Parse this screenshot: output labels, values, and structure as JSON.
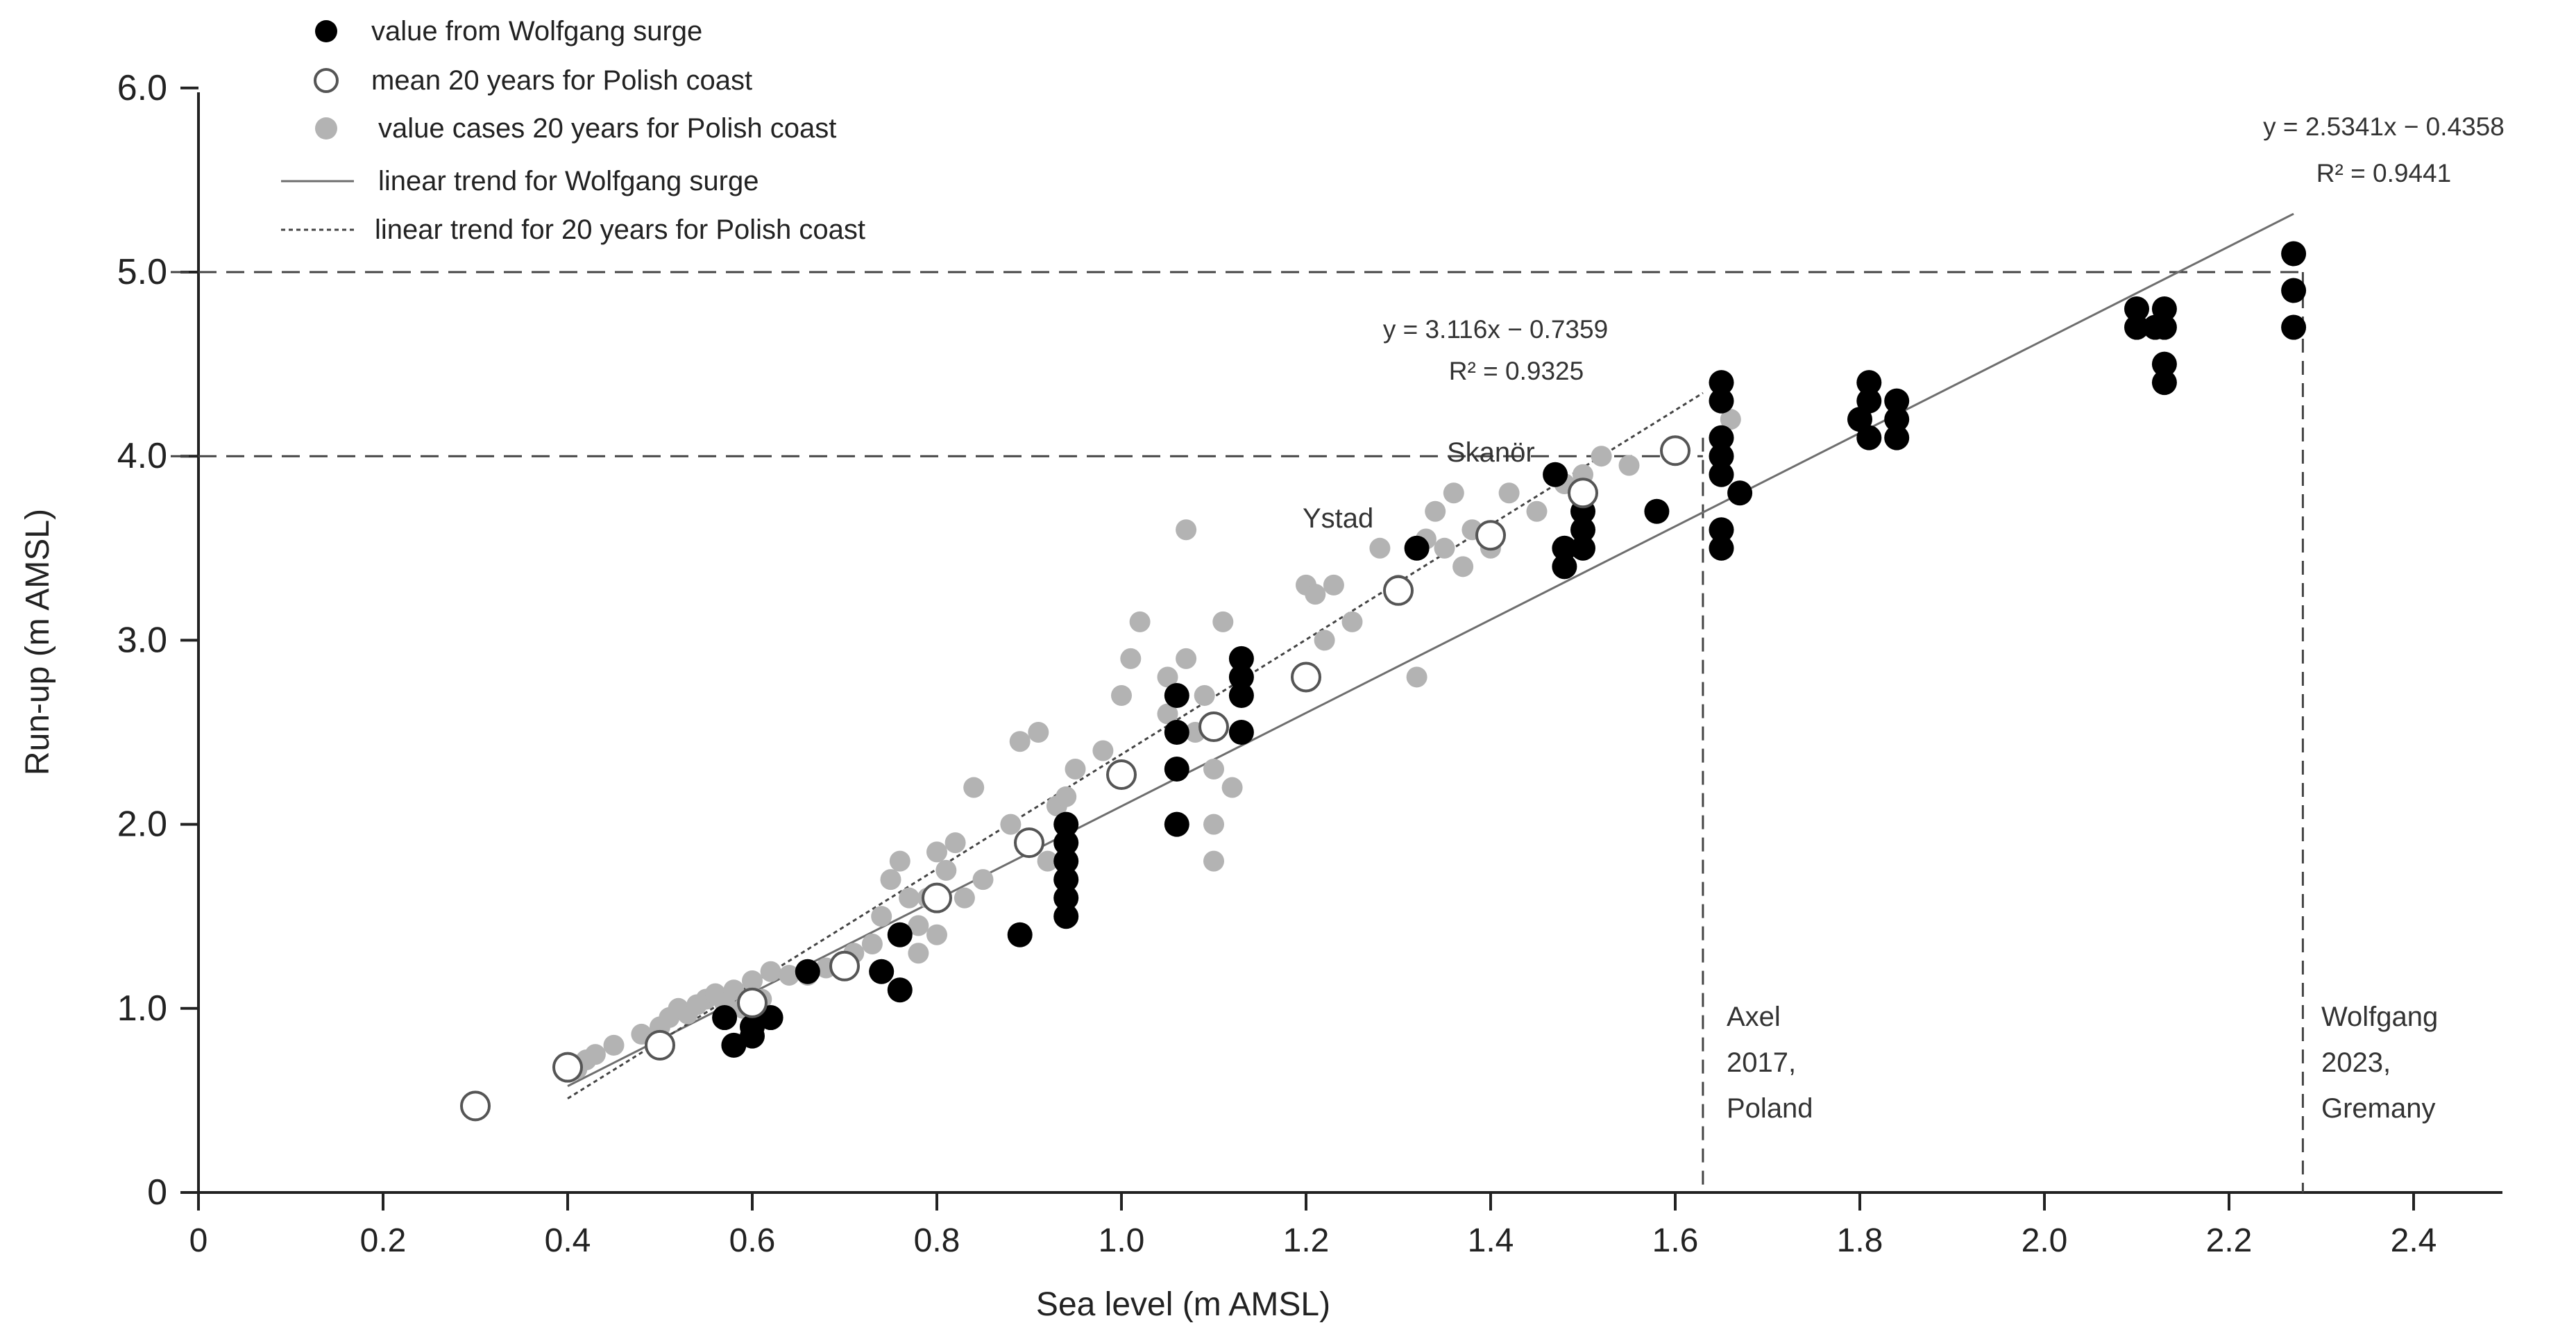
{
  "chart_data": {
    "type": "scatter",
    "xlabel": "Sea level (m AMSL)",
    "ylabel": "Run-up (m AMSL)",
    "xlim": [
      0,
      2.5
    ],
    "ylim": [
      0,
      6
    ],
    "x_ticks": [
      "0",
      "0.2",
      "0.4",
      "0.6",
      "0.8",
      "1.0",
      "1.2",
      "1.4",
      "1.6",
      "1.8",
      "2.0",
      "2.2",
      "2.4"
    ],
    "y_ticks": [
      "0",
      "1.0",
      "2.0",
      "3.0",
      "4.0",
      "5.0",
      "6.0"
    ],
    "legend": {
      "wolfgang": "value from Wolfgang surge",
      "mean20": "mean 20 years for Polish coast",
      "cases20": "value cases 20 years for Polish coast",
      "trend_wolfgang": "linear trend for Wolfgang surge",
      "trend_20": "linear trend for 20 years for Polish coast"
    },
    "colors": {
      "wolfgang": "#000000",
      "cases20": "#b3b3b3",
      "trend_wolfgang": "#6e6e6e",
      "trend_20": "#444444",
      "reference": "#444444"
    },
    "series": [
      {
        "name": "value cases 20 years for Polish coast",
        "style": "gray",
        "points": [
          [
            0.41,
            0.67
          ],
          [
            0.42,
            0.72
          ],
          [
            0.43,
            0.75
          ],
          [
            0.45,
            0.8
          ],
          [
            0.48,
            0.86
          ],
          [
            0.5,
            0.9
          ],
          [
            0.51,
            0.95
          ],
          [
            0.52,
            1.0
          ],
          [
            0.53,
            0.97
          ],
          [
            0.54,
            1.02
          ],
          [
            0.55,
            1.05
          ],
          [
            0.56,
            1.08
          ],
          [
            0.57,
            1.03
          ],
          [
            0.58,
            1.1
          ],
          [
            0.59,
            1.0
          ],
          [
            0.6,
            1.15
          ],
          [
            0.61,
            1.05
          ],
          [
            0.62,
            1.2
          ],
          [
            0.64,
            1.18
          ],
          [
            0.66,
            1.18
          ],
          [
            0.68,
            1.22
          ],
          [
            0.7,
            1.25
          ],
          [
            0.71,
            1.3
          ],
          [
            0.73,
            1.35
          ],
          [
            0.74,
            1.5
          ],
          [
            0.75,
            1.7
          ],
          [
            0.76,
            1.8
          ],
          [
            0.77,
            1.6
          ],
          [
            0.78,
            1.3
          ],
          [
            0.78,
            1.45
          ],
          [
            0.79,
            1.6
          ],
          [
            0.8,
            1.85
          ],
          [
            0.8,
            1.4
          ],
          [
            0.81,
            1.75
          ],
          [
            0.82,
            1.9
          ],
          [
            0.83,
            1.6
          ],
          [
            0.84,
            2.2
          ],
          [
            0.85,
            1.7
          ],
          [
            0.88,
            2.0
          ],
          [
            0.89,
            2.45
          ],
          [
            0.9,
            1.9
          ],
          [
            0.91,
            2.5
          ],
          [
            0.92,
            1.8
          ],
          [
            0.93,
            2.1
          ],
          [
            0.94,
            2.15
          ],
          [
            0.95,
            2.3
          ],
          [
            0.98,
            2.4
          ],
          [
            1.0,
            2.7
          ],
          [
            1.01,
            2.9
          ],
          [
            1.02,
            3.1
          ],
          [
            1.05,
            2.6
          ],
          [
            1.05,
            2.8
          ],
          [
            1.06,
            2.0
          ],
          [
            1.07,
            2.9
          ],
          [
            1.07,
            3.6
          ],
          [
            1.08,
            2.5
          ],
          [
            1.09,
            2.7
          ],
          [
            1.1,
            2.0
          ],
          [
            1.1,
            1.8
          ],
          [
            1.1,
            2.3
          ],
          [
            1.11,
            3.1
          ],
          [
            1.12,
            2.2
          ],
          [
            1.13,
            2.8
          ],
          [
            1.2,
            3.3
          ],
          [
            1.21,
            3.25
          ],
          [
            1.22,
            3.0
          ],
          [
            1.23,
            3.3
          ],
          [
            1.25,
            3.1
          ],
          [
            1.28,
            3.5
          ],
          [
            1.3,
            3.3
          ],
          [
            1.32,
            2.8
          ],
          [
            1.33,
            3.55
          ],
          [
            1.34,
            3.7
          ],
          [
            1.35,
            3.5
          ],
          [
            1.36,
            3.8
          ],
          [
            1.37,
            3.4
          ],
          [
            1.38,
            3.6
          ],
          [
            1.4,
            3.5
          ],
          [
            1.42,
            3.8
          ],
          [
            1.45,
            3.7
          ],
          [
            1.48,
            3.85
          ],
          [
            1.5,
            3.9
          ],
          [
            1.52,
            4.0
          ],
          [
            1.55,
            3.95
          ],
          [
            1.66,
            4.2
          ]
        ]
      },
      {
        "name": "value from Wolfgang surge",
        "style": "black",
        "points": [
          [
            0.57,
            0.95
          ],
          [
            0.58,
            0.8
          ],
          [
            0.6,
            0.85
          ],
          [
            0.6,
            0.9
          ],
          [
            0.62,
            0.95
          ],
          [
            0.66,
            1.2
          ],
          [
            0.74,
            1.2
          ],
          [
            0.76,
            1.1
          ],
          [
            0.76,
            1.4
          ],
          [
            0.89,
            1.4
          ],
          [
            0.94,
            1.5
          ],
          [
            0.94,
            1.6
          ],
          [
            0.94,
            1.7
          ],
          [
            0.94,
            1.8
          ],
          [
            0.94,
            1.9
          ],
          [
            0.94,
            2.0
          ],
          [
            1.06,
            2.0
          ],
          [
            1.06,
            2.3
          ],
          [
            1.06,
            2.5
          ],
          [
            1.06,
            2.7
          ],
          [
            1.13,
            2.5
          ],
          [
            1.13,
            2.7
          ],
          [
            1.13,
            2.8
          ],
          [
            1.13,
            2.9
          ],
          [
            1.32,
            3.5
          ],
          [
            1.47,
            3.9
          ],
          [
            1.48,
            3.4
          ],
          [
            1.48,
            3.5
          ],
          [
            1.5,
            3.5
          ],
          [
            1.5,
            3.6
          ],
          [
            1.5,
            3.7
          ],
          [
            1.58,
            3.7
          ],
          [
            1.65,
            3.5
          ],
          [
            1.65,
            3.6
          ],
          [
            1.65,
            3.9
          ],
          [
            1.65,
            4.0
          ],
          [
            1.65,
            4.1
          ],
          [
            1.65,
            4.3
          ],
          [
            1.65,
            4.4
          ],
          [
            1.67,
            3.8
          ],
          [
            1.8,
            4.2
          ],
          [
            1.81,
            4.1
          ],
          [
            1.81,
            4.3
          ],
          [
            1.81,
            4.4
          ],
          [
            1.84,
            4.1
          ],
          [
            1.84,
            4.2
          ],
          [
            1.84,
            4.3
          ],
          [
            2.1,
            4.7
          ],
          [
            2.1,
            4.8
          ],
          [
            2.12,
            4.7
          ],
          [
            2.13,
            4.4
          ],
          [
            2.13,
            4.5
          ],
          [
            2.13,
            4.7
          ],
          [
            2.13,
            4.8
          ],
          [
            2.27,
            4.7
          ],
          [
            2.27,
            4.9
          ],
          [
            2.27,
            5.1
          ]
        ]
      },
      {
        "name": "mean 20 years for Polish coast",
        "style": "open",
        "points": [
          [
            0.3,
            0.47
          ],
          [
            0.4,
            0.68
          ],
          [
            0.5,
            0.8
          ],
          [
            0.6,
            1.03
          ],
          [
            0.7,
            1.23
          ],
          [
            0.8,
            1.6
          ],
          [
            0.9,
            1.9
          ],
          [
            1.0,
            2.27
          ],
          [
            1.1,
            2.53
          ],
          [
            1.2,
            2.8
          ],
          [
            1.3,
            3.27
          ],
          [
            1.4,
            3.57
          ],
          [
            1.5,
            3.8
          ],
          [
            1.6,
            4.03
          ]
        ]
      }
    ],
    "trendlines": [
      {
        "name": "linear trend for Wolfgang surge",
        "slope": 2.5341,
        "intercept": -0.4358,
        "x_range": [
          0.4,
          2.27
        ],
        "style": "solid",
        "equation": "y = 2.5341x − 0.4358",
        "r2": "R² = 0.9441"
      },
      {
        "name": "linear trend for 20 years for Polish coast",
        "slope": 3.116,
        "intercept": -0.7359,
        "x_range": [
          0.4,
          1.63
        ],
        "style": "dotted",
        "equation": "y = 3.116x − 0.7359",
        "r2": "R² = 0.9325"
      }
    ],
    "reference_lines": {
      "horizontal": [
        {
          "y": 5.0,
          "x_end": 2.28
        },
        {
          "y": 4.0,
          "x_end": 1.63
        }
      ],
      "vertical": [
        {
          "x": 1.63,
          "y_end": 4.1
        },
        {
          "x": 2.28,
          "y_end": 5.0
        }
      ]
    },
    "annotations": [
      {
        "id": "skanor",
        "text": "Skanör",
        "x": 1.31,
        "y": 4.05
      },
      {
        "id": "ystad",
        "text": "Ystad",
        "x": 1.2,
        "y": 3.67
      },
      {
        "id": "axel",
        "lines": [
          "Axel",
          "2017,",
          "Poland"
        ],
        "x": 1.66,
        "y": 1.0
      },
      {
        "id": "wolfgang",
        "lines": [
          "Wolfgang",
          "2023,",
          "Gremany"
        ],
        "x": 2.29,
        "y": 1.0
      }
    ]
  }
}
